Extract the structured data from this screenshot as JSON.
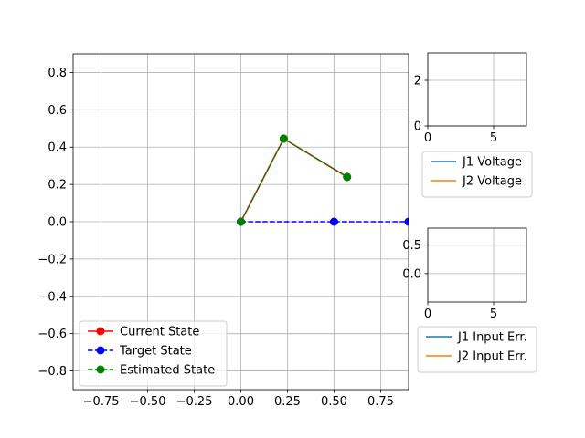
{
  "chart_data": [
    {
      "type": "line",
      "title": "",
      "xlabel": "",
      "ylabel": "",
      "xlim": [
        -0.9,
        0.9
      ],
      "ylim": [
        -0.9,
        0.9
      ],
      "grid": true,
      "xticks": [
        -0.75,
        -0.5,
        -0.25,
        0.0,
        0.25,
        0.5,
        0.75
      ],
      "xtick_labels": [
        "−0.75",
        "−0.50",
        "−0.25",
        "0.00",
        "0.25",
        "0.50",
        "0.75"
      ],
      "yticks": [
        -0.8,
        -0.6,
        -0.4,
        -0.2,
        0.0,
        0.2,
        0.4,
        0.6,
        0.8
      ],
      "ytick_labels": [
        "−0.8",
        "−0.6",
        "−0.4",
        "−0.2",
        "0.0",
        "0.2",
        "0.4",
        "0.6",
        "0.8"
      ],
      "legend_location": "lower-left",
      "series": [
        {
          "name": "Current State",
          "color": "#ff0000",
          "linestyle": "solid",
          "marker": "circle",
          "x": [
            0.0,
            0.23,
            0.57
          ],
          "y": [
            0.0,
            0.445,
            0.24
          ]
        },
        {
          "name": "Target State",
          "color": "#0000ff",
          "linestyle": "dashed",
          "marker": "circle",
          "x": [
            0.0,
            0.5,
            0.9
          ],
          "y": [
            0.0,
            0.0,
            0.0
          ]
        },
        {
          "name": "Estimated State",
          "color": "#008000",
          "linestyle": "dashed",
          "marker": "circle",
          "x": [
            0.0,
            0.23,
            0.57
          ],
          "y": [
            0.0,
            0.445,
            0.24
          ]
        }
      ]
    },
    {
      "type": "line",
      "title": "",
      "xlim": [
        0,
        7.5
      ],
      "ylim": [
        0,
        3.2
      ],
      "grid": true,
      "xticks": [
        0,
        5
      ],
      "xtick_labels": [
        "0",
        "5"
      ],
      "yticks": [
        0,
        2
      ],
      "ytick_labels": [
        "0",
        "2"
      ],
      "legend_location": "below",
      "series": [
        {
          "name": "J1 Voltage",
          "color": "#1f77b4",
          "x": [],
          "y": []
        },
        {
          "name": "J2 Voltage",
          "color": "#ff7f0e",
          "x": [],
          "y": []
        }
      ]
    },
    {
      "type": "line",
      "title": "",
      "xlim": [
        0,
        7.5
      ],
      "ylim": [
        -0.5,
        0.8
      ],
      "grid": true,
      "xticks": [
        0,
        5
      ],
      "xtick_labels": [
        "0",
        "5"
      ],
      "yticks": [
        0.0,
        0.5
      ],
      "ytick_labels": [
        "0.0",
        "0.5"
      ],
      "legend_location": "below",
      "series": [
        {
          "name": "J1 Input Err.",
          "color": "#1f77b4",
          "x": [],
          "y": []
        },
        {
          "name": "J2 Input Err.",
          "color": "#ff7f0e",
          "x": [],
          "y": []
        }
      ]
    }
  ]
}
